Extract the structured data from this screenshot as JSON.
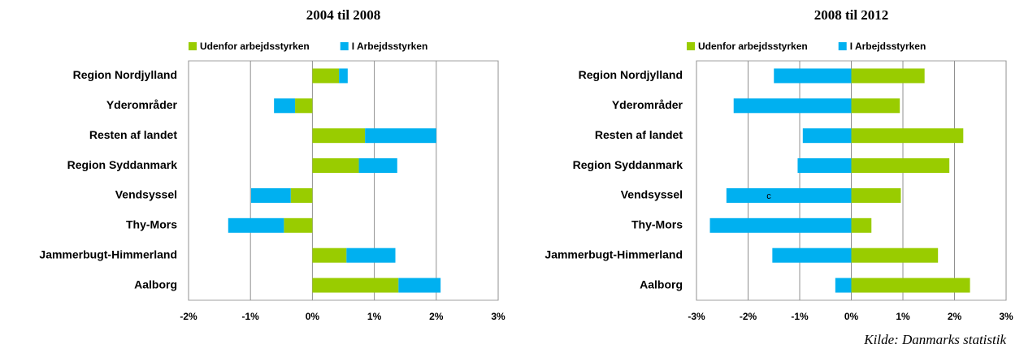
{
  "chart_data": [
    {
      "type": "bar",
      "orientation": "horizontal",
      "stacked": true,
      "title": "2004 til 2008",
      "categories": [
        "Region Nordjylland",
        "Yderområder",
        "Resten af landet",
        "Region Syddanmark",
        "Vendsyssel",
        "Thy-Mors",
        "Jammerbugt-Himmerland",
        "Aalborg"
      ],
      "series": [
        {
          "name": "Udenfor arbejdsstyrken",
          "color": "#99cc00",
          "values": [
            0.43,
            -0.28,
            0.85,
            0.75,
            -0.35,
            -0.46,
            0.55,
            1.39
          ]
        },
        {
          "name": "I Arbejdsstyrken",
          "color": "#00b0f0",
          "values": [
            0.14,
            -0.34,
            1.15,
            0.62,
            -0.64,
            -0.9,
            0.79,
            0.68
          ]
        }
      ],
      "xlim": [
        -2,
        3
      ],
      "xticks": [
        {
          "value": -2,
          "label": "-2%"
        },
        {
          "value": -1,
          "label": "-1%"
        },
        {
          "value": 0,
          "label": "0%"
        },
        {
          "value": 1,
          "label": "1%"
        },
        {
          "value": 2,
          "label": "2%"
        },
        {
          "value": 3,
          "label": "3%"
        }
      ],
      "grid": true,
      "legend": "top"
    },
    {
      "type": "bar",
      "orientation": "horizontal",
      "stacked": true,
      "title": "2008 til 2012",
      "categories": [
        "Region Nordjylland",
        "Yderområder",
        "Resten af landet",
        "Region Syddanmark",
        "Vendsyssel",
        "Thy-Mors",
        "Jammerbugt-Himmerland",
        "Aalborg"
      ],
      "series": [
        {
          "name": "Udenfor arbejdsstyrken",
          "color": "#99cc00",
          "values": [
            1.42,
            0.94,
            2.17,
            1.9,
            0.96,
            0.39,
            1.68,
            2.3
          ]
        },
        {
          "name": "I Arbejdsstyrken",
          "color": "#00b0f0",
          "values": [
            -1.5,
            -2.28,
            -0.94,
            -1.04,
            -2.42,
            -2.74,
            -1.53,
            -0.31
          ]
        }
      ],
      "xlim": [
        -3,
        3
      ],
      "xticks": [
        {
          "value": -3,
          "label": "-3%"
        },
        {
          "value": -2,
          "label": "-2%"
        },
        {
          "value": -1,
          "label": "-1%"
        },
        {
          "value": 0,
          "label": "0%"
        },
        {
          "value": 1,
          "label": "1%"
        },
        {
          "value": 2,
          "label": "2%"
        },
        {
          "value": 3,
          "label": "3%"
        }
      ],
      "grid": true,
      "legend": "top",
      "annotation": "c"
    }
  ],
  "source": "Kilde: Danmarks statistik"
}
